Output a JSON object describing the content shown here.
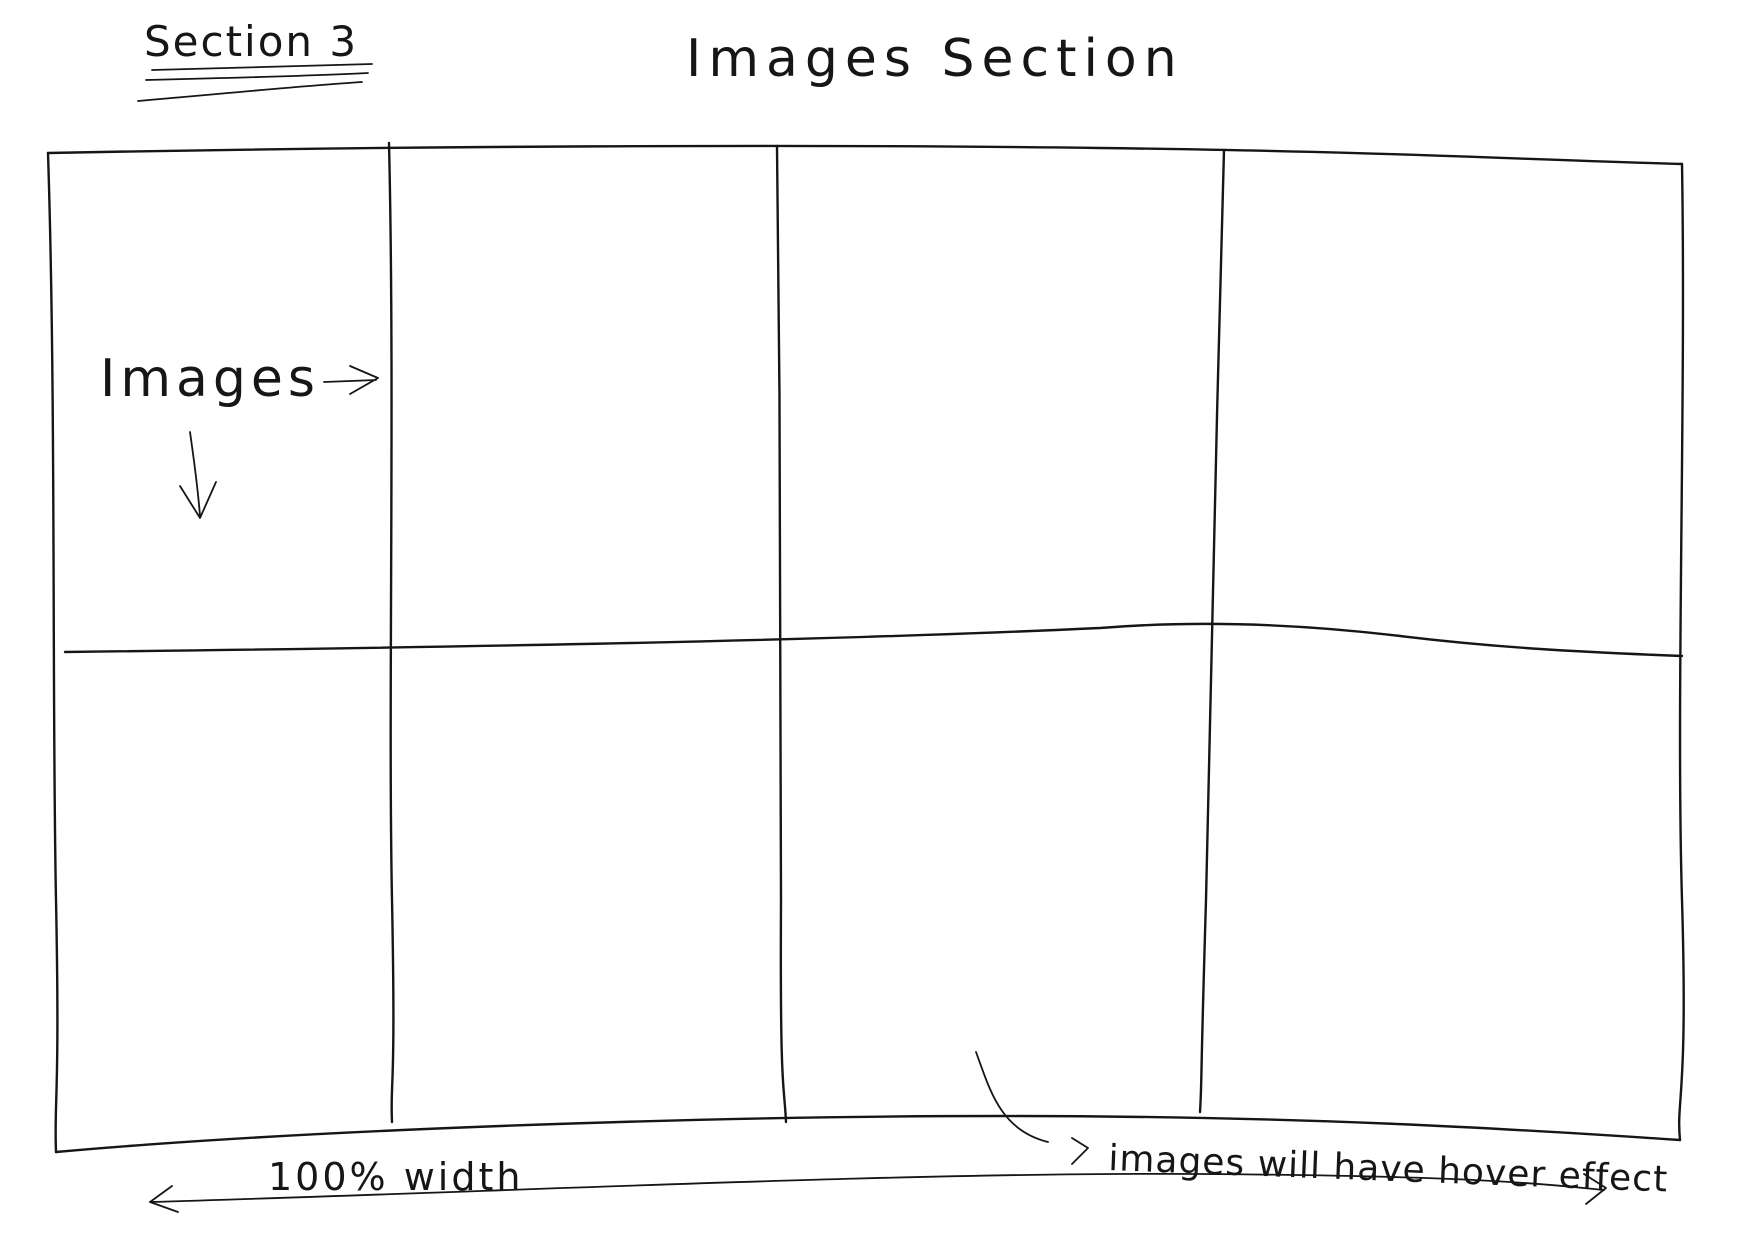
{
  "section_label": "Section 3",
  "heading": "Images Section",
  "images_label": "Images",
  "width_note": "100% width",
  "hover_note": "images will have hover effect",
  "grid": {
    "rows": 2,
    "columns": 4
  },
  "ink_color": "#161616",
  "paper_color": "#ffffff"
}
